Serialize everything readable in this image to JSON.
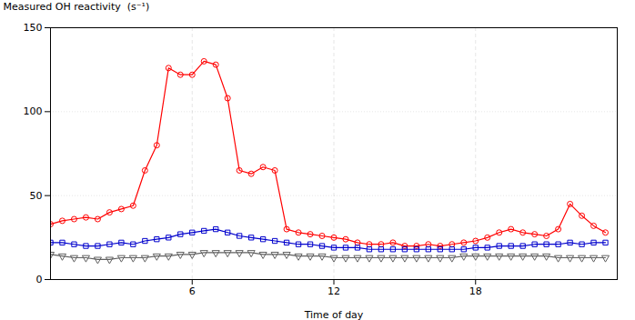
{
  "chart_data": {
    "type": "line",
    "xlabel": "Time of day",
    "ylabel": "Measured OH reactivity  (s⁻¹)",
    "xlim": [
      0,
      24
    ],
    "ylim": [
      0,
      150
    ],
    "xticks": [
      6,
      12,
      18
    ],
    "yticks": [
      0,
      50,
      100,
      150
    ],
    "grid": true,
    "x": [
      0,
      0.5,
      1,
      1.5,
      2,
      2.5,
      3,
      3.5,
      4,
      4.5,
      5,
      5.5,
      6,
      6.5,
      7,
      7.5,
      8,
      8.5,
      9,
      9.5,
      10,
      10.5,
      11,
      11.5,
      12,
      12.5,
      13,
      13.5,
      14,
      14.5,
      15,
      15.5,
      16,
      16.5,
      17,
      17.5,
      18,
      18.5,
      19,
      19.5,
      20,
      20.5,
      21,
      21.5,
      22,
      22.5,
      23,
      23.5
    ],
    "series": [
      {
        "color": "#ff0000",
        "marker": "circle",
        "values": [
          33,
          35,
          36,
          37,
          36,
          40,
          42,
          44,
          65,
          80,
          126,
          122,
          122,
          130,
          128,
          108,
          65,
          63,
          67,
          65,
          30,
          28,
          27,
          26,
          25,
          24,
          22,
          21,
          21,
          22,
          20,
          20,
          21,
          20,
          21,
          22,
          23,
          25,
          28,
          30,
          28,
          27,
          26,
          30,
          45,
          38,
          32,
          28
        ]
      },
      {
        "color": "#0000cc",
        "marker": "square",
        "values": [
          22,
          22,
          21,
          20,
          20,
          21,
          22,
          21,
          23,
          24,
          25,
          27,
          28,
          29,
          30,
          28,
          26,
          25,
          24,
          23,
          22,
          21,
          21,
          20,
          19,
          19,
          19,
          18,
          18,
          18,
          18,
          18,
          18,
          18,
          18,
          18,
          19,
          19,
          20,
          20,
          20,
          21,
          21,
          21,
          22,
          21,
          22,
          22
        ]
      },
      {
        "color": "#606060",
        "marker": "triangle-down",
        "values": [
          15,
          14,
          13,
          13,
          12,
          12,
          13,
          13,
          13,
          14,
          14,
          15,
          15,
          16,
          16,
          16,
          16,
          16,
          15,
          15,
          15,
          14,
          14,
          14,
          13,
          13,
          13,
          13,
          13,
          13,
          13,
          13,
          13,
          13,
          13,
          14,
          14,
          14,
          14,
          14,
          14,
          14,
          14,
          13,
          13,
          13,
          13,
          13
        ]
      }
    ]
  }
}
